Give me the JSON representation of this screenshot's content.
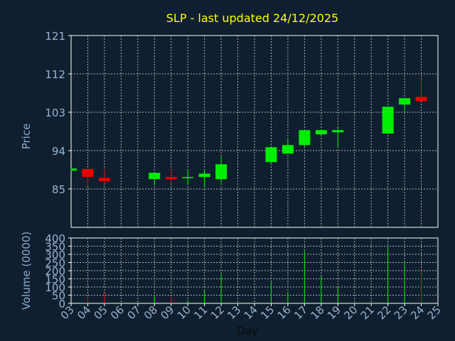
{
  "chart_data": {
    "type": "candlestick",
    "title": "SLP - last updated 24/12/2025",
    "xlabel": "Day",
    "price_panel": {
      "ylabel": "Price",
      "ylim": [
        76,
        121
      ],
      "yticks": [
        "121",
        "112",
        "103",
        "94",
        "85"
      ],
      "ytick_values": [
        121,
        112,
        103,
        94,
        85
      ]
    },
    "volume_panel": {
      "ylabel": "Volume (0000)",
      "ylim": [
        0,
        400
      ],
      "yticks": [
        "400",
        "350",
        "300",
        "250",
        "200",
        "150",
        "100",
        "50",
        "0"
      ],
      "ytick_values": [
        400,
        350,
        300,
        250,
        200,
        150,
        100,
        50,
        0
      ]
    },
    "x_ticks": [
      "03",
      "04",
      "05",
      "06",
      "07",
      "08",
      "09",
      "10",
      "11",
      "12",
      "13",
      "14",
      "15",
      "16",
      "17",
      "18",
      "19",
      "20",
      "21",
      "22",
      "23",
      "24",
      "25"
    ],
    "grid": true,
    "candles": [
      {
        "day": "03",
        "open": 89.3,
        "close": 89.8,
        "high": 89.8,
        "low": 89.3,
        "volume": 0
      },
      {
        "day": "04",
        "open": 89.7,
        "close": 87.8,
        "high": 89.7,
        "low": 85.8,
        "volume": 45
      },
      {
        "day": "05",
        "open": 87.6,
        "close": 86.8,
        "high": 89.6,
        "low": 86.3,
        "volume": 60
      },
      {
        "day": "08",
        "open": 87.3,
        "close": 88.8,
        "high": 88.8,
        "low": 85.9,
        "volume": 45
      },
      {
        "day": "09",
        "open": 87.8,
        "close": 87.3,
        "high": 89.6,
        "low": 86.3,
        "volume": 35
      },
      {
        "day": "10",
        "open": 87.6,
        "close": 87.8,
        "high": 89.6,
        "low": 86.0,
        "volume": 20
      },
      {
        "day": "11",
        "open": 87.8,
        "close": 88.6,
        "high": 89.6,
        "low": 85.3,
        "volume": 80
      },
      {
        "day": "12",
        "open": 87.3,
        "close": 90.8,
        "high": 92.6,
        "low": 86.5,
        "volume": 180
      },
      {
        "day": "15",
        "open": 91.3,
        "close": 94.8,
        "high": 94.8,
        "low": 90.8,
        "volume": 130
      },
      {
        "day": "16",
        "open": 93.3,
        "close": 95.3,
        "high": 97.0,
        "low": 93.3,
        "volume": 70
      },
      {
        "day": "17",
        "open": 95.3,
        "close": 98.8,
        "high": 98.8,
        "low": 95.0,
        "volume": 320
      },
      {
        "day": "18",
        "open": 97.8,
        "close": 98.8,
        "high": 98.8,
        "low": 97.3,
        "volume": 165
      },
      {
        "day": "19",
        "open": 98.3,
        "close": 98.8,
        "high": 99.6,
        "low": 94.8,
        "volume": 100
      },
      {
        "day": "22",
        "open": 98.0,
        "close": 104.3,
        "high": 104.3,
        "low": 98.0,
        "volume": 350
      },
      {
        "day": "23",
        "open": 104.8,
        "close": 106.3,
        "high": 106.3,
        "low": 103.0,
        "volume": 260
      },
      {
        "day": "24",
        "open": 106.6,
        "close": 105.6,
        "high": 110.8,
        "low": 105.6,
        "volume": 200
      }
    ]
  },
  "colors": {
    "background": "#0f1f2f",
    "title": "#ffff00",
    "axis_label": "#8aaac9",
    "tick_label": "#9ab4d2",
    "xlabel": "#0a0a0a",
    "frame": "#ffffff",
    "grid": "#b0b0b0",
    "up": "#00ee00",
    "down": "#ee0000"
  }
}
